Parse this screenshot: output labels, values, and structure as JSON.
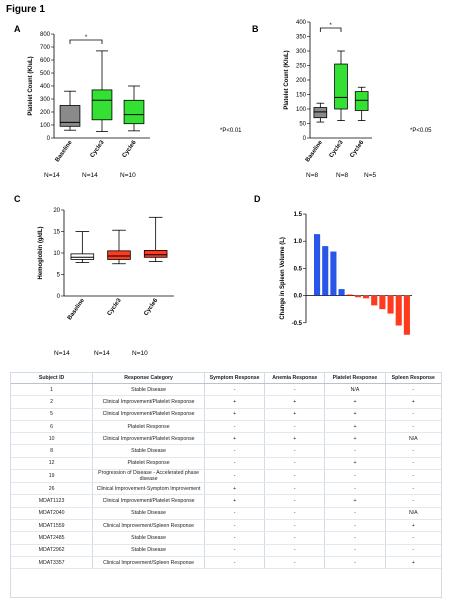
{
  "figure_title": "Figure 1",
  "panels": {
    "A": {
      "letter": "A",
      "note": "*P<0.01",
      "n_labels": [
        "N=14",
        "N=14",
        "N=10"
      ]
    },
    "B": {
      "letter": "B",
      "note": "*P<0.05",
      "n_labels": [
        "N=8",
        "N=8",
        "N=5"
      ]
    },
    "C": {
      "letter": "C",
      "note": "",
      "n_labels": [
        "N=14",
        "N=14",
        "N=10"
      ]
    },
    "D": {
      "letter": "D",
      "note": "",
      "n_labels": []
    }
  },
  "chart_data": [
    {
      "panel": "A",
      "type": "box",
      "ylabel": "Platelet Count (K/uL)",
      "ylim": [
        0,
        800
      ],
      "yticks": [
        0,
        100,
        200,
        300,
        400,
        500,
        600,
        700,
        800
      ],
      "categories": [
        "Baseline",
        "Cycle3",
        "Cycle6"
      ],
      "boxes": [
        {
          "min": 60,
          "q1": 90,
          "median": 120,
          "q3": 250,
          "max": 360,
          "color": "#8a8a8a"
        },
        {
          "min": 50,
          "q1": 140,
          "median": 290,
          "q3": 370,
          "max": 670,
          "color": "#33e033"
        },
        {
          "min": 55,
          "q1": 110,
          "median": 180,
          "q3": 290,
          "max": 400,
          "color": "#33e033"
        }
      ],
      "significance": {
        "from": 0,
        "to": 1,
        "label": "*"
      }
    },
    {
      "panel": "B",
      "type": "box",
      "ylabel": "Platelet Count (K/uL)",
      "ylim": [
        0,
        400
      ],
      "yticks": [
        0,
        50,
        100,
        150,
        200,
        250,
        300,
        350,
        400
      ],
      "categories": [
        "Baseline",
        "Cycle3",
        "Cycle6"
      ],
      "boxes": [
        {
          "min": 55,
          "q1": 70,
          "median": 90,
          "q3": 105,
          "max": 120,
          "color": "#8a8a8a"
        },
        {
          "min": 60,
          "q1": 100,
          "median": 140,
          "q3": 255,
          "max": 300,
          "color": "#33e033"
        },
        {
          "min": 60,
          "q1": 95,
          "median": 130,
          "q3": 160,
          "max": 175,
          "color": "#33e033"
        }
      ],
      "significance": {
        "from": 0,
        "to": 1,
        "label": "*"
      }
    },
    {
      "panel": "C",
      "type": "box",
      "ylabel": "Hemoglobin (g/dL)",
      "ylim": [
        0,
        20
      ],
      "yticks": [
        0,
        5,
        10,
        15,
        20
      ],
      "categories": [
        "Baseline",
        "Cycle3",
        "Cycle6"
      ],
      "boxes": [
        {
          "min": 7.8,
          "q1": 8.5,
          "median": 9.0,
          "q3": 9.8,
          "max": 15.0,
          "color": "#ffffff"
        },
        {
          "min": 7.5,
          "q1": 8.5,
          "median": 9.3,
          "q3": 10.5,
          "max": 15.3,
          "color": "#ff3b1f"
        },
        {
          "min": 8.0,
          "q1": 9.0,
          "median": 9.6,
          "q3": 10.6,
          "max": 18.3,
          "color": "#ff3b1f"
        }
      ]
    },
    {
      "panel": "D",
      "type": "bar",
      "ylabel": "Change in Spleen Volume (L)",
      "ylim": [
        -1.0,
        1.5
      ],
      "yticks": [
        -0.5,
        0.0,
        0.5,
        1.0,
        1.5
      ],
      "ytick_labels": [
        "-0.5",
        "0.0",
        "0.5",
        "1.0",
        "1.5"
      ],
      "values": [
        1.13,
        0.91,
        0.81,
        0.12,
        0.02,
        -0.03,
        -0.05,
        -0.18,
        -0.25,
        -0.33,
        -0.55,
        -0.72
      ],
      "colors_positive": "#2a56e8",
      "colors_negative": "#ff3b1f"
    }
  ],
  "table": {
    "headers": [
      "Subject ID",
      "Response Category",
      "Symptom Response",
      "Anemia Response",
      "Platelet Response",
      "Spleen Response"
    ],
    "rows": [
      [
        "1",
        "Stable Disease",
        "-",
        "-",
        "N/A",
        "-"
      ],
      [
        "2",
        "Clinical Improvement/Platelet Response",
        "+",
        "+",
        "+",
        "+"
      ],
      [
        "5",
        "Clinical Improvement/Platelet Response",
        "+",
        "+",
        "+",
        "-"
      ],
      [
        "6",
        "Platelet Response",
        "-",
        "-",
        "+",
        "-"
      ],
      [
        "10",
        "Clinical Improvement/Platelet Response",
        "+",
        "+",
        "+",
        "N/A"
      ],
      [
        "8",
        "Stable Disease",
        "-",
        "-",
        "-",
        "-"
      ],
      [
        "12",
        "Platelet Response",
        "-",
        "-",
        "+",
        "-"
      ],
      [
        "19",
        "Progression of Disease - Accelerated phase disease",
        "-",
        "-",
        "-",
        "-"
      ],
      [
        "26",
        "Clinical Improvement-Symptom Improvement",
        "+",
        "-",
        "-",
        "-"
      ],
      [
        "MDAT1123",
        "Clinical Improvement/Platelet Response",
        "+",
        "-",
        "+",
        "-"
      ],
      [
        "MDAT2040",
        "Stable Disease",
        "-",
        "-",
        "-",
        "N/A"
      ],
      [
        "MDAT1559",
        "Clinical Improvement/Spleen Response",
        "-",
        "-",
        "-",
        "+"
      ],
      [
        "MDAT2485",
        "Stable Disease",
        "-",
        "-",
        "-",
        "-"
      ],
      [
        "MDAT2962",
        "Stable Disease",
        "-",
        "-",
        "-",
        "-"
      ],
      [
        "MDAT3357",
        "Clinical Improvement/Spleen Response",
        "-",
        "-",
        "-",
        "+"
      ]
    ]
  }
}
